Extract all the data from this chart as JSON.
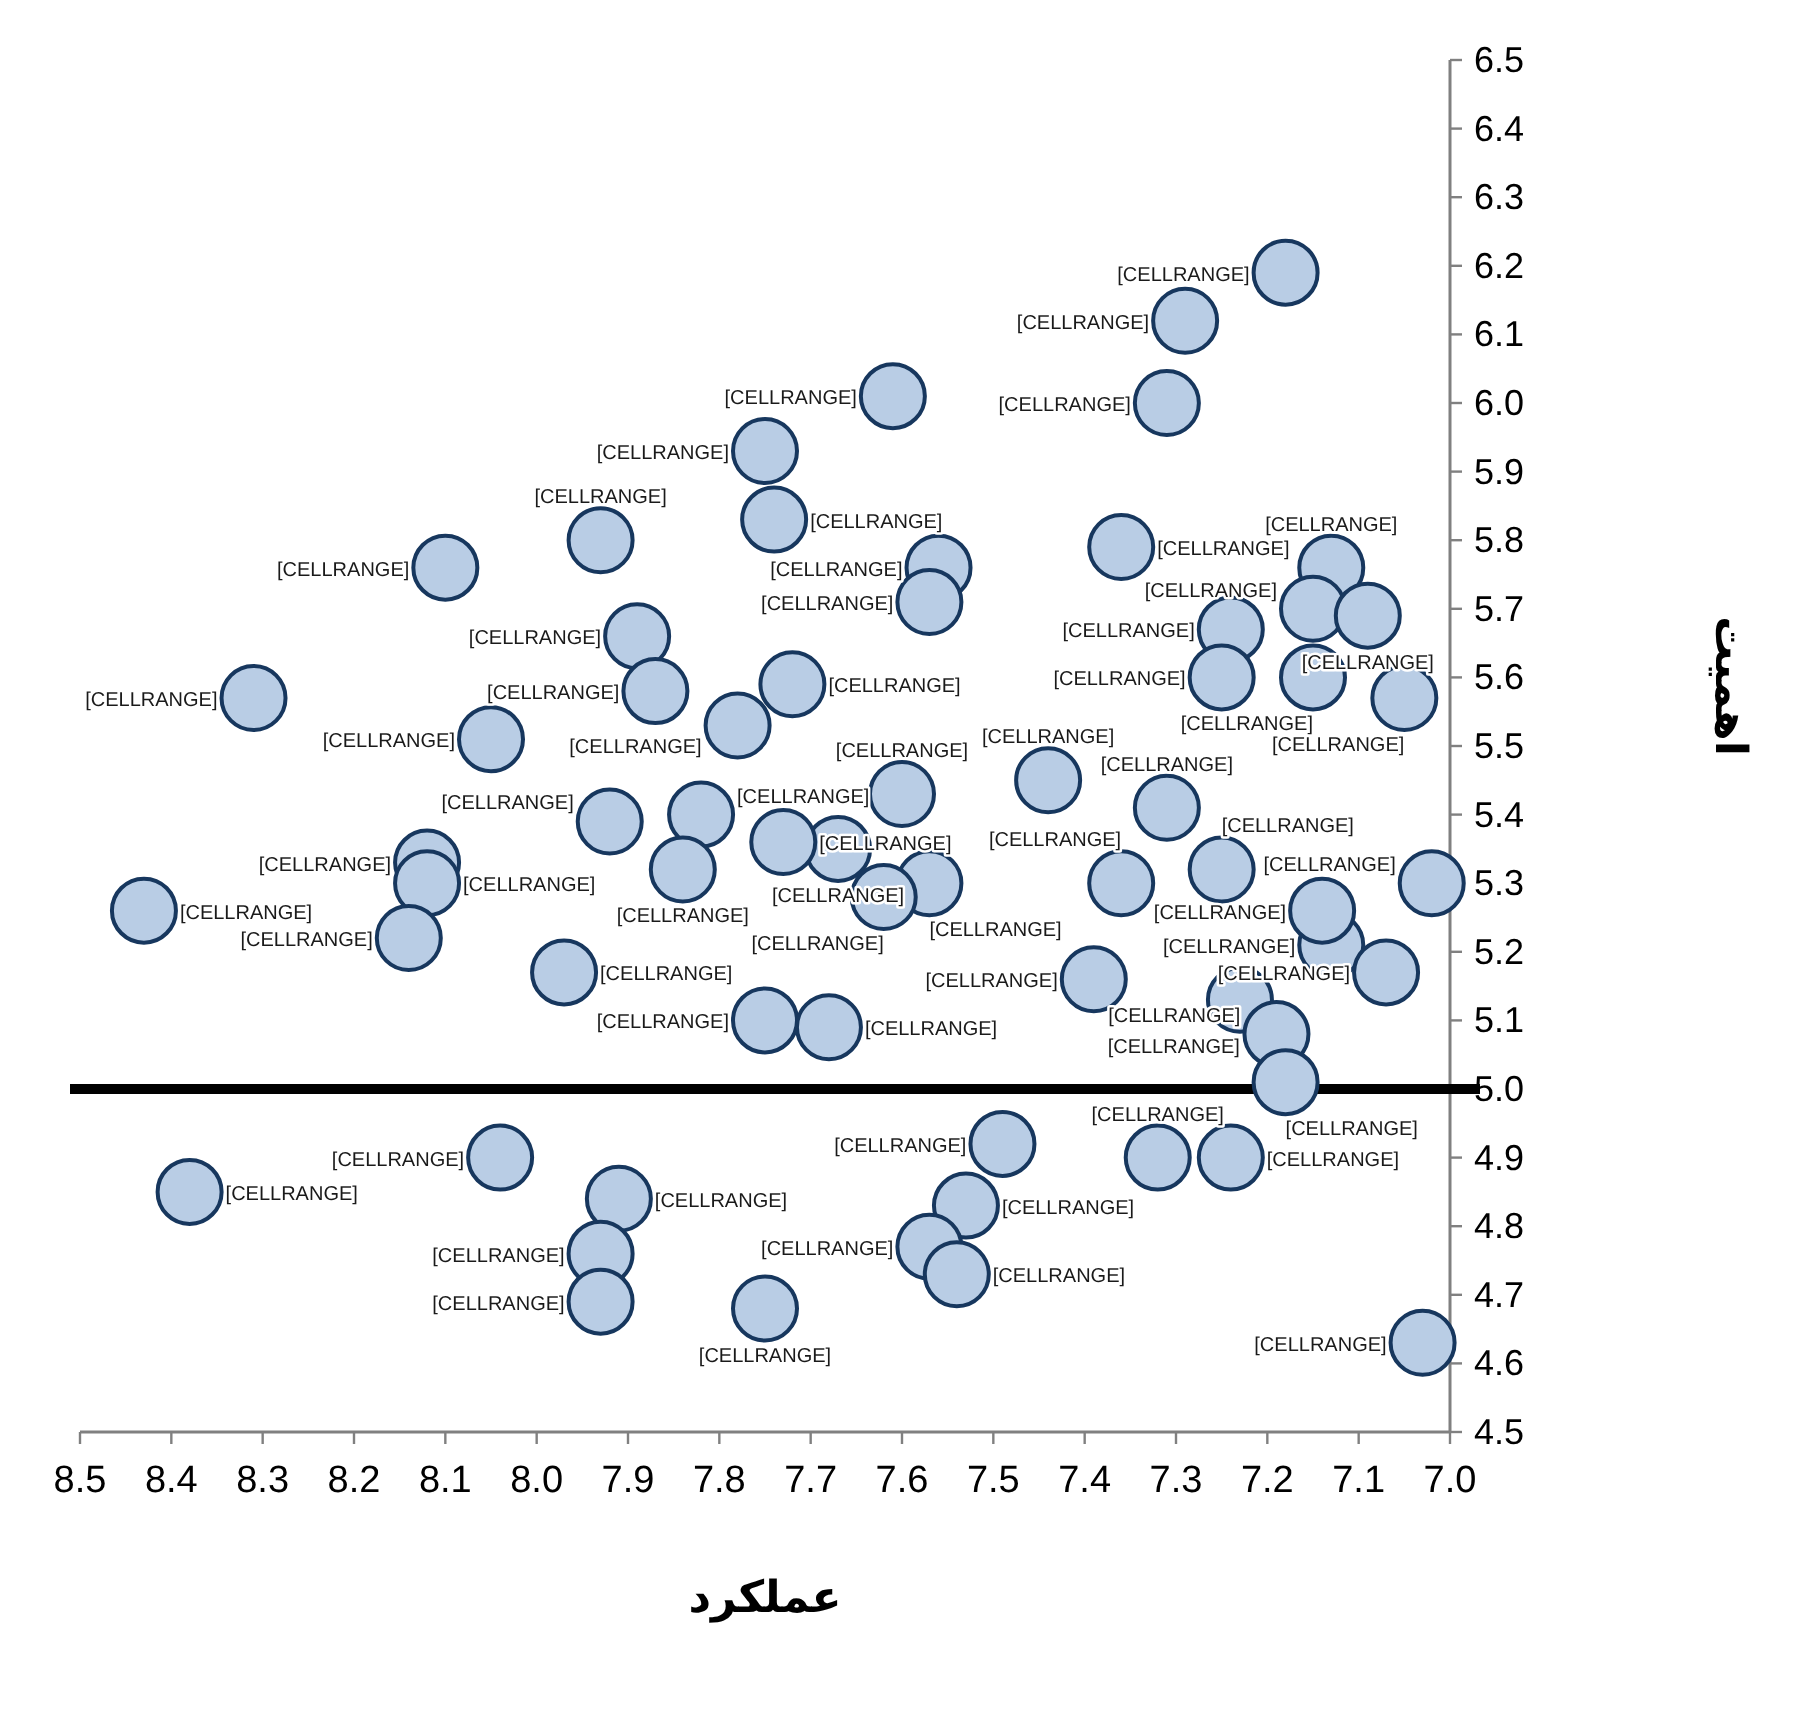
{
  "chart_data": {
    "type": "scatter",
    "xlabel": "عملکرد",
    "ylabel": "اهمیت",
    "xlim": [
      8.5,
      7.0
    ],
    "ylim": [
      4.5,
      6.5
    ],
    "xticks": [
      8.5,
      8.4,
      8.3,
      8.2,
      8.1,
      {
        "value": 8,
        "label": "8.0"
      },
      7.9,
      7.8,
      7.7,
      7.6,
      7.5,
      7.4,
      7.3,
      7.2,
      7.1,
      {
        "value": 7,
        "label": "7.0"
      }
    ],
    "yticks": [
      {
        "value": 4.5,
        "label": "4.5"
      },
      4.6,
      4.7,
      4.8,
      4.9,
      {
        "value": 5,
        "label": "5.0"
      },
      5.1,
      5.2,
      5.3,
      5.4,
      5.5,
      5.6,
      5.7,
      5.8,
      5.9,
      {
        "value": 6,
        "label": "6.0"
      },
      6.1,
      6.2,
      6.3,
      6.4,
      6.5
    ],
    "marker": "circle",
    "ref_lines": [
      {
        "axis": "y",
        "value": 5.0,
        "color": "#000000"
      }
    ],
    "series": [
      {
        "color": "#b9cde5",
        "x": [
          7.75,
          7.74,
          7.93,
          8.1,
          7.89,
          7.87,
          7.72,
          7.78,
          8.31,
          8.05,
          7.92,
          7.82,
          8.12,
          8.12,
          8.14,
          8.43,
          7.97,
          7.84,
          7.75,
          7.02,
          7.68,
          7.39,
          7.23,
          7.19,
          7.18,
          7.13,
          7.07,
          7.14,
          7.25,
          7.36,
          7.31,
          7.44,
          7.6,
          7.67,
          7.73,
          7.57,
          7.62,
          7.49,
          7.32,
          7.24,
          7.53,
          7.57,
          7.54,
          7.75,
          7.03,
          8.38,
          8.04,
          7.91,
          7.93,
          7.93,
          7.18,
          7.29,
          7.31,
          7.61,
          7.56,
          7.57,
          7.36,
          7.13,
          7.24,
          7.15,
          7.09,
          7.25,
          7.15,
          7.05
        ],
        "values": [
          5.93,
          5.83,
          5.8,
          5.76,
          5.66,
          5.58,
          5.59,
          5.53,
          5.57,
          5.51,
          5.39,
          5.4,
          5.33,
          5.3,
          5.22,
          5.26,
          5.17,
          5.32,
          5.1,
          5.3,
          5.09,
          5.16,
          5.13,
          5.08,
          5.01,
          5.21,
          5.17,
          5.26,
          5.32,
          5.3,
          5.41,
          5.45,
          5.43,
          5.35,
          5.36,
          5.3,
          5.28,
          4.92,
          4.9,
          4.9,
          4.83,
          4.77,
          4.73,
          4.68,
          4.63,
          4.85,
          4.9,
          4.84,
          4.76,
          4.69,
          6.19,
          6.12,
          6.0,
          6.01,
          5.76,
          5.71,
          5.79,
          5.76,
          5.67,
          5.7,
          5.69,
          5.6,
          5.6,
          5.57
        ],
        "value_labels": [
          "[CELLRANGE]",
          "[CELLRANGE]",
          "[CELLRANGE]",
          "[CELLRANGE]",
          "[CELLRANGE]",
          "[CELLRANGE]",
          "[CELLRANGE]",
          "[CELLRANGE]",
          "[CELLRANGE]",
          "[CELLRANGE]",
          "[CELLRANGE]",
          "[CELLRANGE]",
          "[CELLRANGE]",
          "[CELLRANGE]",
          "[CELLRANGE]",
          "[CELLRANGE]",
          "[CELLRANGE]",
          "[CELLRANGE]",
          "[CELLRANGE]",
          "[CELLRANGE]",
          "[CELLRANGE]",
          "[CELLRANGE]",
          "[CELLRANGE]",
          "[CELLRANGE]",
          "[CELLRANGE]",
          "[CELLRANGE]",
          "[CELLRANGE]",
          "[CELLRANGE]",
          "[CELLRANGE]",
          "[CELLRANGE]",
          "[CELLRANGE]",
          "[CELLRANGE]",
          "[CELLRANGE]",
          "[CELLRANGE]",
          "[CELLRANGE]",
          "[CELLRANGE]",
          "[CELLRANGE]",
          "[CELLRANGE]",
          "[CELLRANGE]",
          "[CELLRANGE]",
          "[CELLRANGE]",
          "[CELLRANGE]",
          "[CELLRANGE]",
          "[CELLRANGE]",
          "[CELLRANGE]",
          "[CELLRANGE]",
          "[CELLRANGE]",
          "[CELLRANGE]",
          "[CELLRANGE]",
          "[CELLRANGE]",
          "[CELLRANGE]",
          "[CELLRANGE]",
          "[CELLRANGE]",
          "[CELLRANGE]",
          "[CELLRANGE]",
          "[CELLRANGE]",
          "[CELLRANGE]",
          "[CELLRANGE]",
          "[CELLRANGE]",
          "[CELLRANGE]",
          "[CELLRANGE]",
          "[CELLRANGE]",
          "[CELLRANGE]",
          "[CELLRANGE]"
        ]
      }
    ]
  }
}
